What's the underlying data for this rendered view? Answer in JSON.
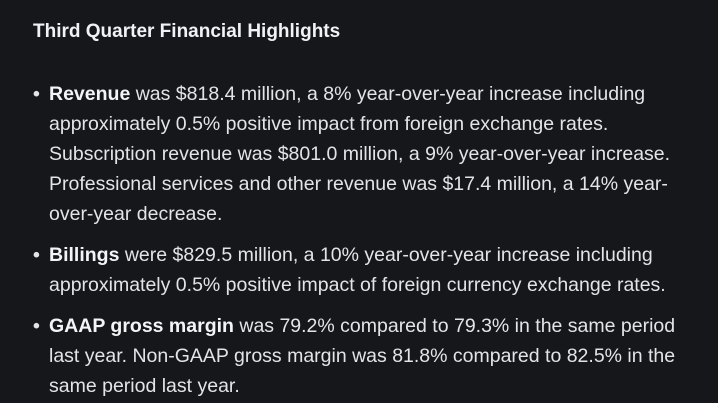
{
  "section": {
    "title": "Third Quarter Financial Highlights"
  },
  "bullets": [
    {
      "term": "Revenue",
      "text": " was $818.4 million, a 8% year-over-year increase including approximately 0.5% positive impact from foreign exchange rates. Subscription revenue was $801.0 million, a 9% year-over-year increase. Professional services and other revenue was $17.4 million, a 14% year-over-year decrease."
    },
    {
      "term": "Billings",
      "text": " were $829.5 million, a 10% year-over-year increase including approximately 0.5% positive impact of foreign currency exchange rates."
    },
    {
      "term": "GAAP gross margin",
      "text": " was 79.2% compared to 79.3% in the same period last year. Non-GAAP gross margin was 81.8% compared to 82.5% in the same period last year."
    }
  ],
  "bullet_glyph": "•"
}
